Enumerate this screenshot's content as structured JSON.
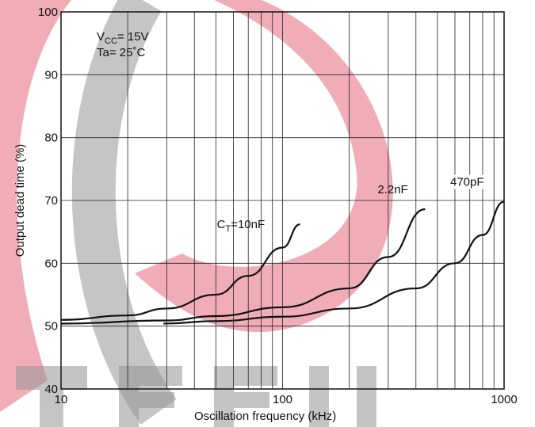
{
  "chart_data": {
    "type": "line",
    "x_label": "Oscillation  frequency  (kHz)",
    "y_label": "Output  dead  time  (%)",
    "annotations": [
      {
        "main": "V",
        "sub": "CC",
        "rest": "= 15V"
      },
      "Ta= 25˚C"
    ],
    "xscale": "log",
    "xlim": [
      10,
      1000
    ],
    "ylim": [
      40,
      100
    ],
    "xticks": [
      10,
      100,
      1000
    ],
    "xminorticks": [
      20,
      30,
      40,
      50,
      60,
      70,
      80,
      90,
      200,
      300,
      400,
      500,
      600,
      700,
      800,
      900
    ],
    "yticks": [
      40,
      50,
      60,
      70,
      80,
      90,
      100
    ],
    "grid": true,
    "series": [
      {
        "name": {
          "main": "C",
          "sub": "T",
          "rest": "=10nF"
        },
        "color": "#111111",
        "x": [
          10,
          20,
          30,
          50,
          70,
          100,
          120
        ],
        "values": [
          51,
          51.7,
          52.8,
          55,
          58,
          62.5,
          66.2
        ]
      },
      {
        "name": "2.2nF",
        "color": "#111111",
        "x": [
          10,
          30,
          50,
          100,
          200,
          300,
          440
        ],
        "values": [
          50.4,
          50.9,
          51.6,
          53,
          56,
          61,
          68.6
        ]
      },
      {
        "name": "470pF",
        "color": "#111111",
        "x": [
          29,
          50,
          100,
          200,
          400,
          600,
          800,
          1000
        ],
        "values": [
          50.4,
          50.8,
          51.5,
          52.8,
          56,
          60,
          64.5,
          69.8
        ]
      }
    ]
  }
}
